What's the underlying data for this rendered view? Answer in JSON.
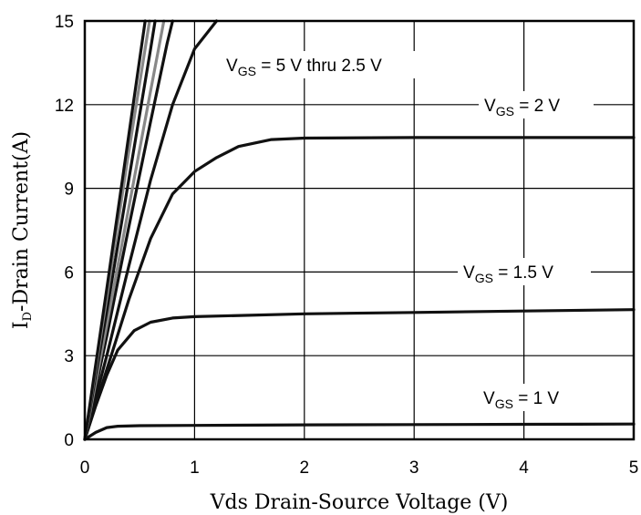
{
  "chart_data": {
    "type": "line",
    "xlabel": "Vds Drain-Source Voltage (V)",
    "ylabel_main": "I",
    "ylabel_sub": "D",
    "ylabel_rest": "-Drain Current(A)",
    "xlim": [
      0,
      5
    ],
    "ylim": [
      0,
      15
    ],
    "x_ticks": [
      "0",
      "1",
      "2",
      "3",
      "4",
      "5"
    ],
    "y_ticks": [
      "0",
      "3",
      "6",
      "9",
      "12",
      "15"
    ],
    "grid": true,
    "annotations": [
      {
        "id": "vgs-5-2p5",
        "main": "V",
        "sub": "GS",
        "rest": " = 5 V thru 2.5 V"
      },
      {
        "id": "vgs-2",
        "main": "V",
        "sub": "GS",
        "rest": " = 2 V"
      },
      {
        "id": "vgs-1p5",
        "main": "V",
        "sub": "GS",
        "rest": " = 1.5 V"
      },
      {
        "id": "vgs-1",
        "main": "V",
        "sub": "GS",
        "rest": " = 1 V"
      }
    ],
    "series": [
      {
        "color": "#111111",
        "points": [
          [
            0,
            0
          ],
          [
            0.1,
            0.25
          ],
          [
            0.2,
            0.42
          ],
          [
            0.3,
            0.47
          ],
          [
            0.5,
            0.49
          ],
          [
            1,
            0.5
          ],
          [
            2,
            0.52
          ],
          [
            3,
            0.53
          ],
          [
            4,
            0.54
          ],
          [
            5,
            0.55
          ]
        ]
      },
      {
        "color": "#111111",
        "points": [
          [
            0,
            0
          ],
          [
            0.1,
            1.2
          ],
          [
            0.2,
            2.3
          ],
          [
            0.3,
            3.2
          ],
          [
            0.45,
            3.9
          ],
          [
            0.6,
            4.2
          ],
          [
            0.8,
            4.35
          ],
          [
            1,
            4.4
          ],
          [
            2,
            4.5
          ],
          [
            3,
            4.55
          ],
          [
            4,
            4.6
          ],
          [
            5,
            4.65
          ]
        ]
      },
      {
        "color": "#111111",
        "points": [
          [
            0,
            0
          ],
          [
            0.2,
            2.5
          ],
          [
            0.4,
            5
          ],
          [
            0.6,
            7.2
          ],
          [
            0.8,
            8.8
          ],
          [
            1,
            9.6
          ],
          [
            1.2,
            10.1
          ],
          [
            1.4,
            10.5
          ],
          [
            1.7,
            10.75
          ],
          [
            2,
            10.8
          ],
          [
            3,
            10.82
          ],
          [
            4,
            10.82
          ],
          [
            5,
            10.82
          ]
        ]
      },
      {
        "color": "#111111",
        "points": [
          [
            0,
            0
          ],
          [
            0.2,
            3
          ],
          [
            0.4,
            6.2
          ],
          [
            0.6,
            9.3
          ],
          [
            0.8,
            12
          ],
          [
            1,
            14
          ],
          [
            1.2,
            15
          ]
        ]
      },
      {
        "color": "#111111",
        "points": [
          [
            0,
            0
          ],
          [
            0.2,
            3.7
          ],
          [
            0.4,
            7.6
          ],
          [
            0.6,
            11.4
          ],
          [
            0.75,
            14.2
          ],
          [
            0.8,
            15
          ]
        ]
      },
      {
        "color": "#888888",
        "points": [
          [
            0,
            0
          ],
          [
            0.2,
            4.1
          ],
          [
            0.4,
            8.3
          ],
          [
            0.6,
            12.5
          ],
          [
            0.72,
            15
          ]
        ]
      },
      {
        "color": "#111111",
        "points": [
          [
            0,
            0
          ],
          [
            0.2,
            4.6
          ],
          [
            0.4,
            9.3
          ],
          [
            0.6,
            14
          ],
          [
            0.64,
            15
          ]
        ]
      },
      {
        "color": "#888888",
        "points": [
          [
            0,
            0
          ],
          [
            0.2,
            5.1
          ],
          [
            0.4,
            10.3
          ],
          [
            0.59,
            15
          ]
        ]
      },
      {
        "color": "#111111",
        "points": [
          [
            0,
            0
          ],
          [
            0.2,
            5.4
          ],
          [
            0.4,
            10.9
          ],
          [
            0.55,
            15
          ]
        ]
      }
    ]
  }
}
